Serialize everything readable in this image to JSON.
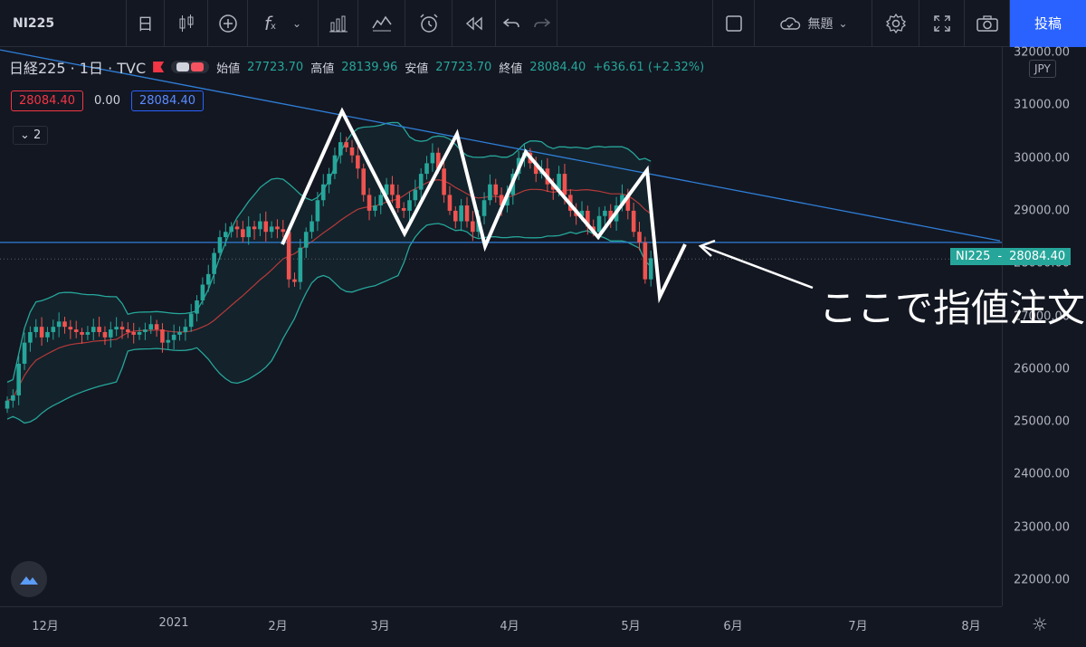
{
  "toolbar": {
    "symbol": "NI225",
    "interval": "日",
    "fx": "f",
    "layout_name": "無題",
    "post_label": "投稿"
  },
  "legend": {
    "title": "日経225 · 1日 · TVC",
    "open_label": "始値",
    "open": "27723.70",
    "high_label": "高値",
    "high": "28139.96",
    "low_label": "安値",
    "low": "27723.70",
    "close_label": "終値",
    "close": "28084.40",
    "change": "+636.61 (+2.32%)"
  },
  "price_boxes": {
    "bid": "28084.40",
    "spread": "0.00",
    "ask": "28084.40"
  },
  "collapse_label": "2",
  "price_label": {
    "symbol": "NI225",
    "value": "28084.40"
  },
  "currency": "JPY",
  "annotation": "ここで指値注文",
  "colors": {
    "up": "#26a69a",
    "down": "#ef5350",
    "band": "#26a69a",
    "mid": "#b53a3a",
    "trend": "#2f7fd8",
    "background": "#131722"
  },
  "chart_data": {
    "type": "candlestick",
    "y_ticks": [
      "32000.00",
      "31000.00",
      "30000.00",
      "29000.00",
      "28000.00",
      "27000.00",
      "26000.00",
      "25000.00",
      "24000.00",
      "23000.00",
      "22000.00"
    ],
    "x_ticks": [
      "12月",
      "2021",
      "2月",
      "3月",
      "4月",
      "5月",
      "6月",
      "7月",
      "8月"
    ],
    "ylim": [
      21600,
      32200
    ],
    "overlays": [
      "bollinger_bands",
      "trendline",
      "horizontal_line",
      "zigzag_annotation",
      "arrow_annotation"
    ],
    "horizontal_line_value": 28400,
    "trendline": [
      [
        0,
        32050
      ],
      [
        1105,
        28430
      ]
    ],
    "closes": [
      25400,
      25500,
      26100,
      26500,
      26700,
      26800,
      26600,
      26700,
      26800,
      26900,
      26800,
      26750,
      26700,
      26650,
      26700,
      26800,
      26700,
      26600,
      26750,
      26800,
      26750,
      26700,
      26650,
      26700,
      26750,
      26850,
      26750,
      26500,
      26550,
      26650,
      26700,
      26800,
      27050,
      27300,
      27600,
      27800,
      28200,
      28500,
      28600,
      28700,
      28650,
      28500,
      28700,
      28650,
      28800,
      28600,
      28700,
      28650,
      28600,
      27700,
      27650,
      28300,
      28600,
      28800,
      29200,
      29500,
      29700,
      30050,
      30300,
      30200,
      30050,
      29800,
      29300,
      29000,
      29100,
      29300,
      29500,
      29300,
      29050,
      29000,
      29200,
      29400,
      29700,
      29900,
      30100,
      29800,
      29300,
      29000,
      28800,
      29100,
      28800,
      28600,
      28900,
      29200,
      29500,
      29300,
      29100,
      29300,
      29700,
      30000,
      30100,
      29900,
      29700,
      29800,
      29500,
      29400,
      29700,
      29300,
      29000,
      28900,
      29000,
      28700,
      28600,
      28900,
      29000,
      28800,
      29100,
      29300,
      29000,
      28600,
      28400,
      27700,
      28100
    ]
  }
}
